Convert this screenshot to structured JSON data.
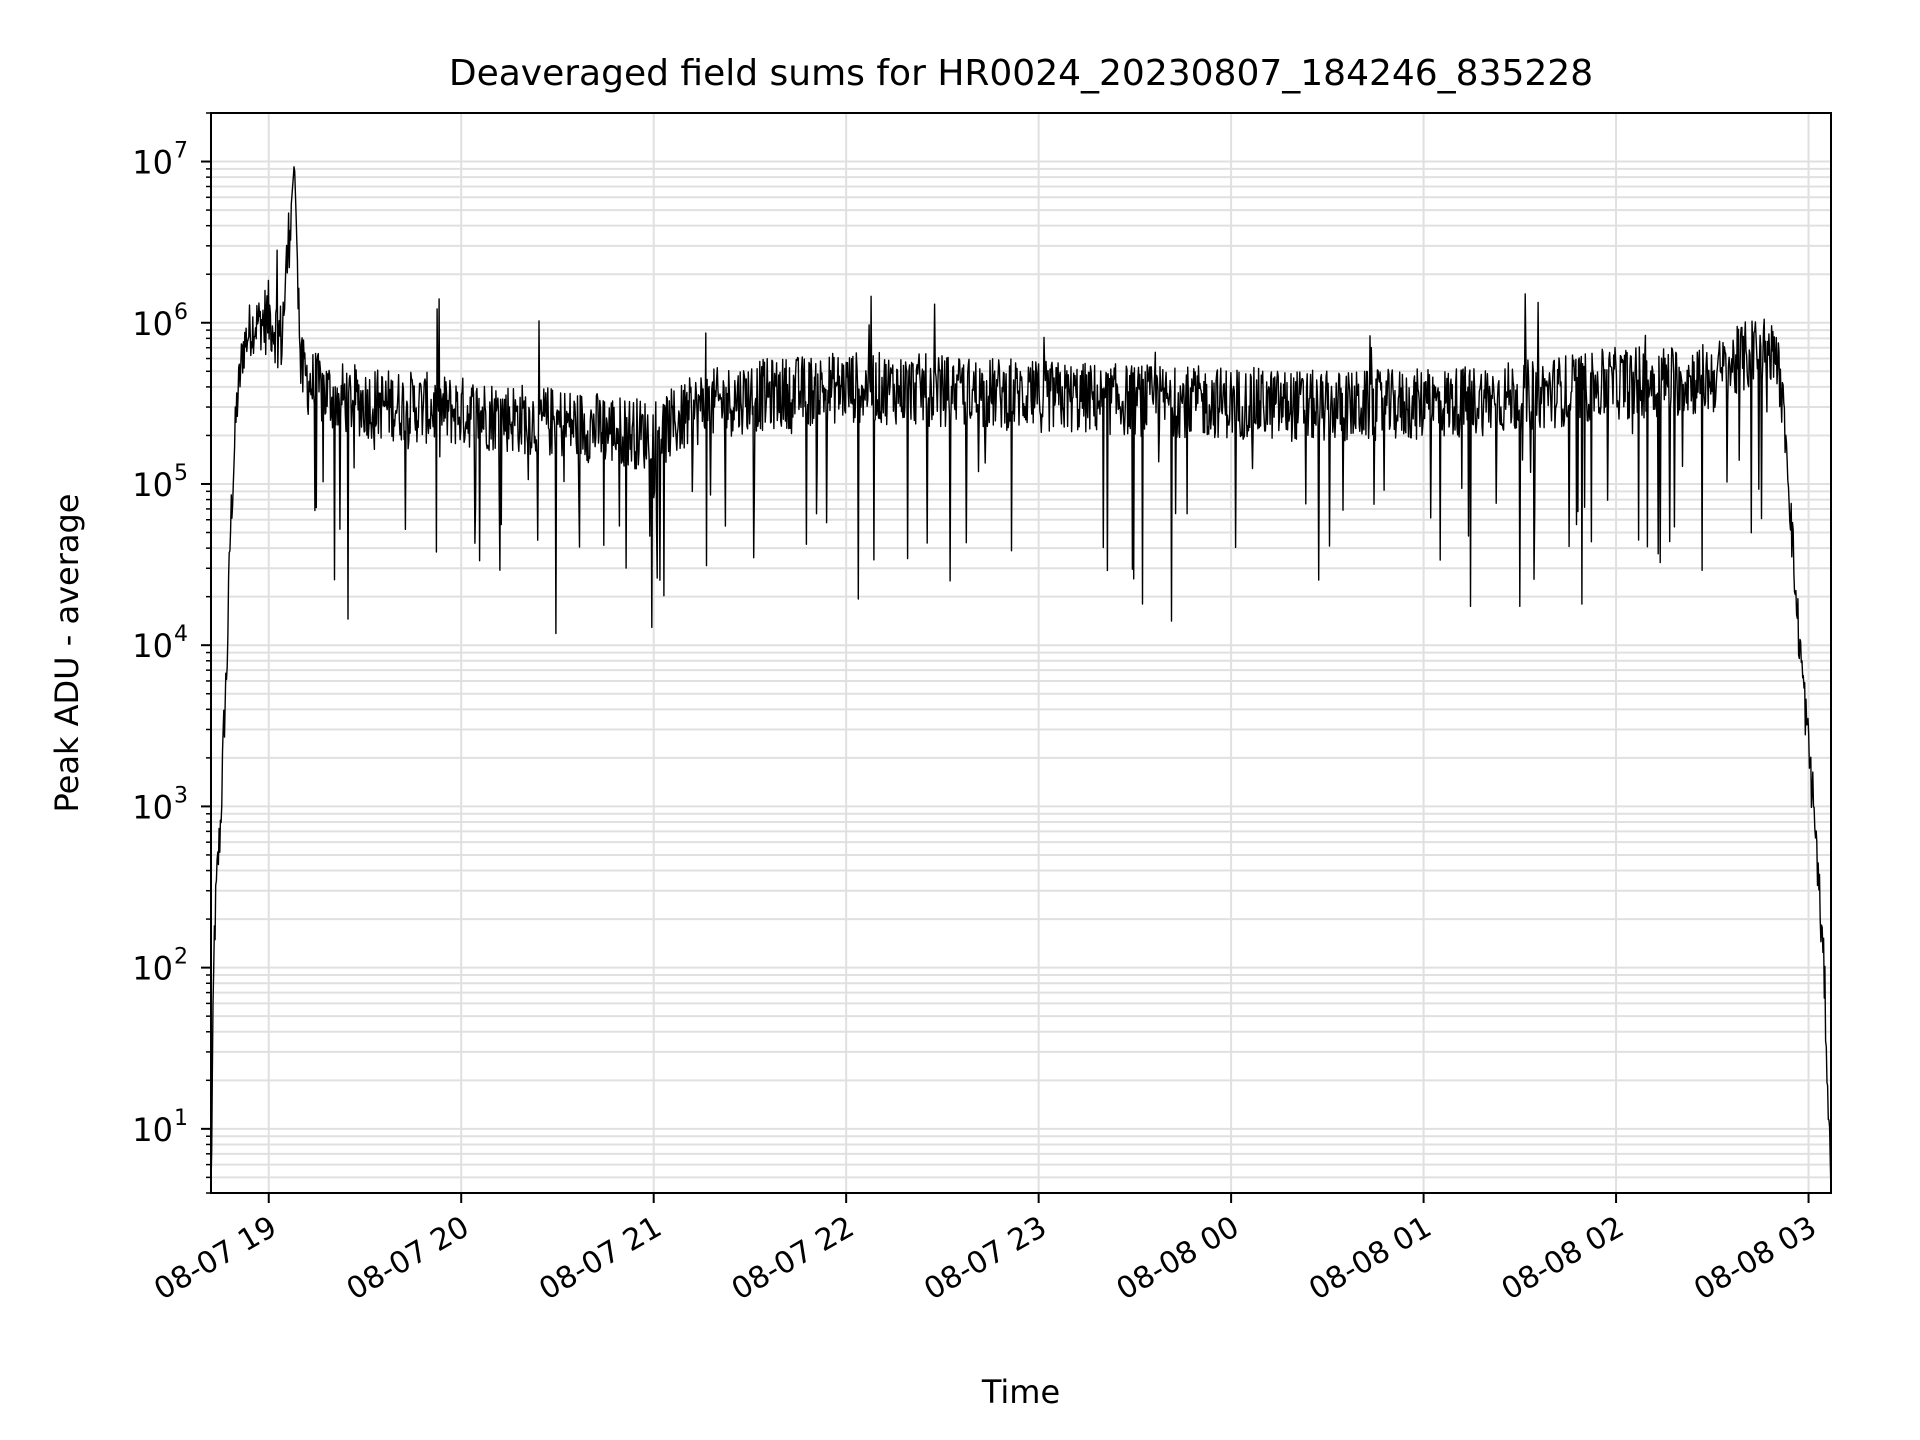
{
  "chart_data": {
    "type": "line",
    "title": "Deaveraged field sums for HR0024_20230807_184246_835228",
    "xlabel": "Time",
    "ylabel": "Peak ADU - average",
    "x_ticks": [
      "08-07 19",
      "08-07 20",
      "08-07 21",
      "08-07 22",
      "08-07 23",
      "08-08 00",
      "08-08 01",
      "08-08 02",
      "08-08 03"
    ],
    "x_tick_values": [
      "2023-08-07 19:00",
      "2023-08-07 20:00",
      "2023-08-07 21:00",
      "2023-08-07 22:00",
      "2023-08-07 23:00",
      "2023-08-08 00:00",
      "2023-08-08 01:00",
      "2023-08-08 02:00",
      "2023-08-08 03:00"
    ],
    "y_scale": "log",
    "y_ticks": [
      10,
      100,
      1000,
      10000,
      100000,
      1000000,
      10000000
    ],
    "y_tick_labels": [
      {
        "base": "10",
        "exp": "1"
      },
      {
        "base": "10",
        "exp": "2"
      },
      {
        "base": "10",
        "exp": "3"
      },
      {
        "base": "10",
        "exp": "4"
      },
      {
        "base": "10",
        "exp": "5"
      },
      {
        "base": "10",
        "exp": "6"
      },
      {
        "base": "10",
        "exp": "7"
      }
    ],
    "xlim": [
      "2023-08-07 18:42",
      "2023-08-08 03:07"
    ],
    "ylim": [
      4,
      20000000
    ],
    "grid": true,
    "line_color": "#000000",
    "grid_color": "#e0e0e0",
    "series": [
      {
        "x": [
          "2023-08-07 18:42",
          "2023-08-07 18:43",
          "2023-08-07 18:44",
          "2023-08-07 18:45",
          "2023-08-07 18:46",
          "2023-08-07 18:47",
          "2023-08-07 18:48",
          "2023-08-07 18:50",
          "2023-08-07 18:52",
          "2023-08-07 18:54",
          "2023-08-07 18:56",
          "2023-08-07 18:58",
          "2023-08-07 19:00",
          "2023-08-07 19:04",
          "2023-08-07 19:08",
          "2023-08-07 19:10",
          "2023-08-07 19:14",
          "2023-08-07 19:20",
          "2023-08-07 19:30",
          "2023-08-07 19:45",
          "2023-08-07 20:00",
          "2023-08-07 20:15",
          "2023-08-07 20:30",
          "2023-08-07 20:45",
          "2023-08-07 21:00",
          "2023-08-07 21:15",
          "2023-08-07 21:30",
          "2023-08-07 22:00",
          "2023-08-07 22:30",
          "2023-08-07 23:00",
          "2023-08-07 23:30",
          "2023-08-08 00:00",
          "2023-08-08 00:30",
          "2023-08-08 01:00",
          "2023-08-08 01:30",
          "2023-08-08 02:00",
          "2023-08-08 02:30",
          "2023-08-08 02:45",
          "2023-08-08 02:50",
          "2023-08-08 02:53",
          "2023-08-08 02:56",
          "2023-08-08 02:59",
          "2023-08-08 03:02",
          "2023-08-08 03:05",
          "2023-08-08 03:07"
        ],
        "y": [
          4,
          150,
          400,
          800,
          3000,
          8000,
          50000,
          300000,
          700000,
          900000,
          1000000,
          1000000,
          1100000,
          800000,
          10000000,
          500000,
          400000,
          350000,
          320000,
          300000,
          280000,
          260000,
          240000,
          220000,
          200000,
          300000,
          350000,
          400000,
          380000,
          350000,
          330000,
          320000,
          300000,
          310000,
          350000,
          420000,
          450000,
          700000,
          650000,
          200000,
          20000,
          4000,
          800,
          80,
          4
        ]
      }
    ]
  }
}
